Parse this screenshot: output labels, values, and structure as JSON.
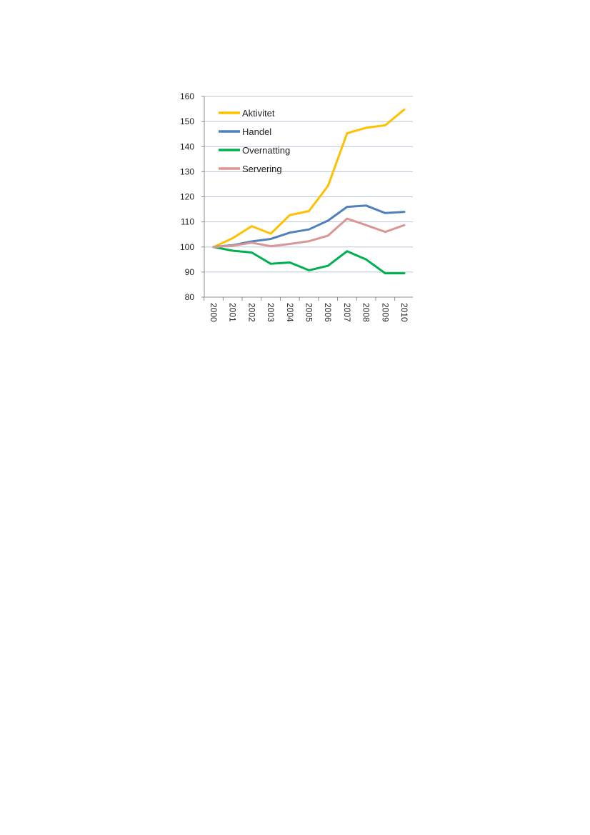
{
  "chart_data": {
    "type": "line",
    "title": "",
    "xlabel": "",
    "ylabel": "",
    "x": [
      "2000",
      "2001",
      "2002",
      "2003",
      "2004",
      "2005",
      "2006",
      "2007",
      "2008",
      "2009",
      "2010"
    ],
    "ylim": [
      80,
      160
    ],
    "yticks": [
      "80",
      "90",
      "100",
      "110",
      "120",
      "130",
      "140",
      "150",
      "160"
    ],
    "grid": true,
    "legend_position": "top-left",
    "series": [
      {
        "name": "Aktivitet",
        "color": "#FFC000",
        "values": [
          100,
          103.5,
          108.3,
          105.3,
          112.7,
          114.3,
          124.3,
          145.3,
          147.5,
          148.5,
          154.8
        ]
      },
      {
        "name": "Handel",
        "color": "#4F81BD",
        "values": [
          100,
          100.7,
          102.2,
          103.2,
          105.7,
          107.0,
          110.5,
          116.0,
          116.5,
          113.5,
          114.0
        ]
      },
      {
        "name": "Overnatting",
        "color": "#00B050",
        "values": [
          100,
          98.5,
          97.8,
          93.3,
          93.8,
          90.7,
          92.5,
          98.3,
          95.0,
          89.5,
          89.5
        ]
      },
      {
        "name": "Servering",
        "color": "#D99694",
        "values": [
          100,
          100.5,
          101.7,
          100.3,
          101.2,
          102.3,
          104.5,
          111.3,
          108.7,
          106.0,
          108.7
        ]
      }
    ]
  }
}
